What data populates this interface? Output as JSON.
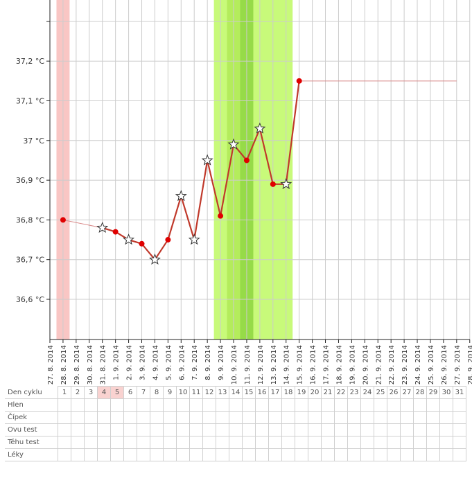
{
  "chart_data": {
    "type": "line",
    "ylabel_format": "°C",
    "y_ticks": [
      {
        "value": 36.6,
        "label": "36,6 °C"
      },
      {
        "value": 36.7,
        "label": "36,7 °C"
      },
      {
        "value": 36.8,
        "label": "36,8 °C"
      },
      {
        "value": 36.9,
        "label": "36,9 °C"
      },
      {
        "value": 37.0,
        "label": "37 °C"
      },
      {
        "value": 37.1,
        "label": "37,1 °C"
      },
      {
        "value": 37.2,
        "label": "37,2 °C"
      }
    ],
    "ylim": [
      36.5,
      37.35
    ],
    "x_labels": [
      "27. 8. 2014",
      "28. 8. 2014",
      "29. 8. 2014",
      "30. 8. 2014",
      "31. 8. 2014",
      "1. 9. 2014",
      "2. 9. 2014",
      "3. 9. 2014",
      "4. 9. 2014",
      "5. 9. 2014",
      "6. 9. 2014",
      "7. 9. 2014",
      "8. 9. 2014",
      "9. 9. 2014",
      "10. 9. 2014",
      "11. 9. 2014",
      "12. 9. 2014",
      "13. 9. 2014",
      "14. 9. 2014",
      "15. 9. 2014",
      "16. 9. 2014",
      "17. 9. 2014",
      "18. 9. 2014",
      "19. 9. 2014",
      "20. 9. 2014",
      "21. 9. 2014",
      "22. 9. 2014",
      "23. 9. 2014",
      "24. 9. 2014",
      "25. 9. 2014",
      "26. 9. 2014",
      "27. 9. 2014",
      "28. 9. 2014"
    ],
    "series": [
      {
        "points": [
          {
            "x": "28. 8. 2014",
            "y": 36.8,
            "marker": "dot"
          },
          {
            "x": "31. 8. 2014",
            "y": 36.78,
            "marker": "star"
          },
          {
            "x": "1. 9. 2014",
            "y": 36.77,
            "marker": "dot"
          },
          {
            "x": "2. 9. 2014",
            "y": 36.75,
            "marker": "star"
          },
          {
            "x": "3. 9. 2014",
            "y": 36.74,
            "marker": "dot"
          },
          {
            "x": "4. 9. 2014",
            "y": 36.7,
            "marker": "star"
          },
          {
            "x": "5. 9. 2014",
            "y": 36.75,
            "marker": "dot"
          },
          {
            "x": "6. 9. 2014",
            "y": 36.86,
            "marker": "star"
          },
          {
            "x": "7. 9. 2014",
            "y": 36.75,
            "marker": "star"
          },
          {
            "x": "8. 9. 2014",
            "y": 36.95,
            "marker": "star"
          },
          {
            "x": "9. 9. 2014",
            "y": 36.81,
            "marker": "dot"
          },
          {
            "x": "10. 9. 2014",
            "y": 36.99,
            "marker": "star"
          },
          {
            "x": "11. 9. 2014",
            "y": 36.95,
            "marker": "dot"
          },
          {
            "x": "12. 9. 2014",
            "y": 37.03,
            "marker": "star"
          },
          {
            "x": "13. 9. 2014",
            "y": 36.89,
            "marker": "dot"
          },
          {
            "x": "14. 9. 2014",
            "y": 36.89,
            "marker": "star"
          },
          {
            "x": "15. 9. 2014",
            "y": 37.15,
            "marker": "dot"
          }
        ],
        "extension_line": {
          "from": "15. 9. 2014",
          "to": "27. 9. 2014",
          "y": 37.15
        }
      }
    ],
    "bands": [
      {
        "kind": "menstruation",
        "from": "28. 8. 2014",
        "to": "28. 8. 2014",
        "color": "#f9c6c4"
      },
      {
        "kind": "fertile",
        "from": "9. 9. 2014",
        "to": "14. 9. 2014",
        "color": "#c8fa7a"
      },
      {
        "kind": "fertile-inner",
        "from": "10. 9. 2014",
        "to": "11. 9. 2014",
        "color": "#b4ec5c"
      },
      {
        "kind": "fertile-core",
        "from": "11. 9. 2014",
        "to": "11. 9. 2014",
        "color": "#96db48"
      }
    ],
    "grid": true,
    "colors": {
      "line": "#c0392b",
      "dot": "#e00000",
      "extension": "#d98a8a",
      "grid": "#cccccc",
      "axis": "#222222"
    }
  },
  "table": {
    "rows": [
      "Den cyklu",
      "Hlen",
      "Čípek",
      "Ovu test",
      "Těhu test",
      "Léky"
    ],
    "days": [
      "1",
      "2",
      "3",
      "4",
      "5",
      "6",
      "7",
      "8",
      "9",
      "10",
      "11",
      "12",
      "13",
      "14",
      "15",
      "16",
      "17",
      "18",
      "19",
      "20",
      "21",
      "22",
      "23",
      "24",
      "25",
      "26",
      "27",
      "28",
      "29",
      "30",
      "31"
    ],
    "highlighted_days": [
      "4",
      "5"
    ]
  }
}
